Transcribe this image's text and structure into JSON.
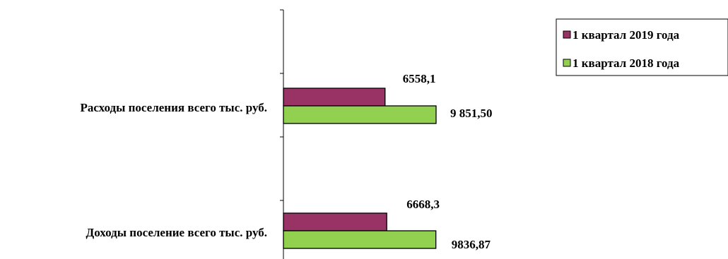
{
  "chart_data": {
    "type": "bar",
    "orientation": "horizontal",
    "categories": [
      "Расходы поселения всего тыс. руб.",
      "Доходы поселение всего тыс. руб."
    ],
    "series": [
      {
        "name": "1 квартал 2019 года",
        "color": "#993366",
        "values": [
          6558.1,
          6668.3
        ],
        "labels": [
          "6558,1",
          "6668,3"
        ]
      },
      {
        "name": "1 квартал 2018 года",
        "color": "#92D050",
        "values": [
          9851.5,
          9836.87
        ],
        "labels": [
          "9 851,50",
          "9836,87"
        ]
      }
    ],
    "title": "",
    "xlabel": "",
    "ylabel": "",
    "xlim": [
      0,
      14000
    ],
    "grid": false,
    "legend_position": "top-right"
  }
}
